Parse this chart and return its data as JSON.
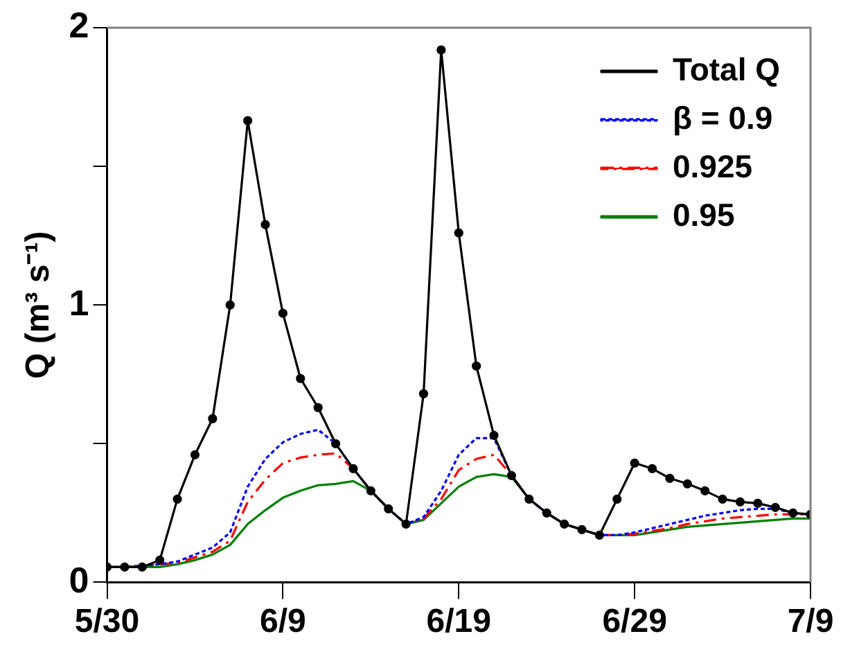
{
  "chart_data": {
    "type": "line",
    "ylabel": "Q (m³ s⁻¹)",
    "x": [
      "--05-30",
      "--05-31",
      "--06-01",
      "--06-02",
      "--06-03",
      "--06-04",
      "--06-05",
      "--06-06",
      "--06-07",
      "--06-08",
      "--06-09",
      "--06-10",
      "--06-11",
      "--06-12",
      "--06-13",
      "--06-14",
      "--06-15",
      "--06-16",
      "--06-17",
      "--06-18",
      "--06-19",
      "--06-20",
      "--06-21",
      "--06-22",
      "--06-23",
      "--06-24",
      "--06-25",
      "--06-26",
      "--06-27",
      "--06-28",
      "--06-29",
      "--06-30",
      "--07-01",
      "--07-02",
      "--07-03",
      "--07-04",
      "--07-05",
      "--07-06",
      "--07-07",
      "--07-08",
      "--07-09"
    ],
    "series": [
      {
        "name": "Total Q",
        "color": "#000000",
        "marker": "circle",
        "line_style": "solid",
        "values": [
          0.055,
          0.055,
          0.055,
          0.08,
          0.3,
          0.46,
          0.59,
          1.0,
          1.665,
          1.29,
          0.97,
          0.735,
          0.63,
          0.5,
          0.41,
          0.33,
          0.265,
          0.21,
          0.68,
          1.92,
          1.26,
          0.78,
          0.53,
          0.385,
          0.3,
          0.25,
          0.21,
          0.19,
          0.17,
          0.3,
          0.43,
          0.41,
          0.375,
          0.355,
          0.33,
          0.3,
          0.29,
          0.285,
          0.27,
          0.25,
          0.245
        ]
      },
      {
        "name": "β = 0.9",
        "color": "#0000ff",
        "marker": "none",
        "line_style": "dotted",
        "values": [
          0.055,
          0.055,
          0.06,
          0.065,
          0.075,
          0.1,
          0.125,
          0.18,
          0.345,
          0.445,
          0.505,
          0.535,
          0.55,
          0.5,
          0.41,
          0.33,
          0.265,
          0.21,
          0.235,
          0.33,
          0.46,
          0.52,
          0.52,
          0.385,
          0.3,
          0.25,
          0.21,
          0.19,
          0.17,
          0.17,
          0.18,
          0.195,
          0.21,
          0.225,
          0.24,
          0.25,
          0.26,
          0.265,
          0.265,
          0.25,
          0.245
        ]
      },
      {
        "name": "0.925",
        "color": "#ff0000",
        "marker": "none",
        "line_style": "dashed",
        "values": [
          0.055,
          0.055,
          0.06,
          0.065,
          0.07,
          0.09,
          0.11,
          0.15,
          0.29,
          0.37,
          0.43,
          0.45,
          0.46,
          0.465,
          0.41,
          0.33,
          0.265,
          0.21,
          0.23,
          0.3,
          0.405,
          0.445,
          0.46,
          0.385,
          0.3,
          0.25,
          0.21,
          0.19,
          0.17,
          0.17,
          0.175,
          0.185,
          0.195,
          0.21,
          0.22,
          0.23,
          0.235,
          0.24,
          0.245,
          0.245,
          0.245
        ]
      },
      {
        "name": "0.95",
        "color": "#008000",
        "marker": "none",
        "line_style": "solid",
        "values": [
          0.055,
          0.055,
          0.055,
          0.055,
          0.065,
          0.08,
          0.1,
          0.135,
          0.21,
          0.26,
          0.305,
          0.33,
          0.35,
          0.355,
          0.365,
          0.33,
          0.265,
          0.21,
          0.225,
          0.285,
          0.345,
          0.38,
          0.39,
          0.38,
          0.3,
          0.25,
          0.21,
          0.19,
          0.17,
          0.17,
          0.17,
          0.18,
          0.19,
          0.2,
          0.205,
          0.21,
          0.215,
          0.22,
          0.225,
          0.23,
          0.23
        ]
      }
    ],
    "xlim": [
      "--05-30",
      "--07-09"
    ],
    "xticks": [
      {
        "value": "--05-30",
        "label": "5/30"
      },
      {
        "value": "--06-09",
        "label": "6/9"
      },
      {
        "value": "--06-19",
        "label": "6/19"
      },
      {
        "value": "--06-29",
        "label": "6/29"
      },
      {
        "value": "--07-09",
        "label": "7/9"
      }
    ],
    "ylim": [
      0,
      2
    ],
    "yticks": [
      0,
      {
        "value": 0.5,
        "label": null
      },
      1,
      {
        "value": 1.5,
        "label": null
      },
      2
    ],
    "grid": false,
    "legend": "top right"
  }
}
